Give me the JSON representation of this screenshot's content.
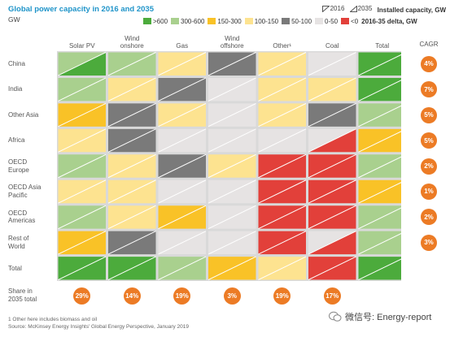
{
  "header": {
    "title": "Global power capacity in 2016 and 2035",
    "unit": "GW",
    "year_2016": "2016",
    "year_2035": "2035",
    "installed_label": "Installed capacity, GW",
    "delta_label": "2016-35 delta, GW"
  },
  "legend": [
    {
      "label": ">600",
      "color": "#4cab3c"
    },
    {
      "label": "300-600",
      "color": "#a9d08e"
    },
    {
      "label": "150-300",
      "color": "#f9c227"
    },
    {
      "label": "100-150",
      "color": "#fde390"
    },
    {
      "label": "50-100",
      "color": "#7a7a7a"
    },
    {
      "label": "0-50",
      "color": "#e6e3e3"
    },
    {
      "label": "<0",
      "color": "#e2403a"
    }
  ],
  "chart_data": {
    "type": "heatmap",
    "title": "Global power capacity in 2016 and 2035",
    "unit": "GW",
    "columns": [
      "Solar PV",
      "Wind onshore",
      "Gas",
      "Wind offshore",
      "Other¹",
      "Coal",
      "Total"
    ],
    "rows": [
      "China",
      "India",
      "Other Asia",
      "Africa",
      "OECD Europe",
      "OECD Asia Pacific",
      "OECD Americas",
      "Rest of World",
      "Total"
    ],
    "row_labels": [
      [
        "China"
      ],
      [
        "India"
      ],
      [
        "Other Asia"
      ],
      [
        "Africa"
      ],
      [
        "OECD",
        "Europe"
      ],
      [
        "OECD Asia",
        "Pacific"
      ],
      [
        "OECD",
        "Americas"
      ],
      [
        "Rest of",
        "World"
      ],
      [
        "Total"
      ]
    ],
    "column_labels": [
      [
        "Solar PV"
      ],
      [
        "Wind",
        "onshore"
      ],
      [
        "Gas"
      ],
      [
        "Wind",
        "offshore"
      ],
      [
        "Other¹"
      ],
      [
        "Coal"
      ],
      [
        "Total"
      ]
    ],
    "cells_2016": [
      [
        "300-600",
        "300-600",
        "100-150",
        "50-100",
        "100-150",
        "0-50",
        ">600"
      ],
      [
        "300-600",
        "100-150",
        "50-100",
        "0-50",
        "100-150",
        "100-150",
        ">600"
      ],
      [
        "150-300",
        "50-100",
        "100-150",
        "0-50",
        "100-150",
        "50-100",
        "300-600"
      ],
      [
        "100-150",
        "50-100",
        "0-50",
        "0-50",
        "0-50",
        "0-50",
        "150-300"
      ],
      [
        "300-600",
        "100-150",
        "50-100",
        "100-150",
        "<0",
        "<0",
        "300-600"
      ],
      [
        "100-150",
        "100-150",
        "0-50",
        "0-50",
        "<0",
        "<0",
        "150-300"
      ],
      [
        "300-600",
        "100-150",
        "150-300",
        "0-50",
        "<0",
        "<0",
        "300-600"
      ],
      [
        "150-300",
        "50-100",
        "0-50",
        "0-50",
        "<0",
        "0-50",
        "300-600"
      ],
      [
        ">600",
        ">600",
        "300-600",
        "150-300",
        "100-150",
        "<0",
        ">600"
      ]
    ],
    "cells_2035": [
      [
        ">600",
        "300-600",
        "100-150",
        "50-100",
        "100-150",
        "0-50",
        ">600"
      ],
      [
        "300-600",
        "100-150",
        "50-100",
        "0-50",
        "100-150",
        "100-150",
        ">600"
      ],
      [
        "150-300",
        "50-100",
        "100-150",
        "0-50",
        "100-150",
        "50-100",
        "300-600"
      ],
      [
        "100-150",
        "50-100",
        "0-50",
        "0-50",
        "0-50",
        "<0",
        "150-300"
      ],
      [
        "300-600",
        "100-150",
        "50-100",
        "100-150",
        "<0",
        "<0",
        "300-600"
      ],
      [
        "100-150",
        "100-150",
        "0-50",
        "0-50",
        "<0",
        "<0",
        "150-300"
      ],
      [
        "300-600",
        "100-150",
        "150-300",
        "0-50",
        "<0",
        "<0",
        "300-600"
      ],
      [
        "150-300",
        "50-100",
        "0-50",
        "0-50",
        "<0",
        "<0",
        "300-600"
      ],
      [
        ">600",
        ">600",
        "300-600",
        "150-300",
        "100-150",
        "<0",
        ">600"
      ]
    ],
    "cagr_header": "CAGR",
    "cagr": [
      "4%",
      "7%",
      "5%",
      "5%",
      "2%",
      "1%",
      "2%",
      "3%"
    ],
    "share_label": [
      "Share in",
      "2035 total"
    ],
    "share": [
      "29%",
      "14%",
      "19%",
      "3%",
      "19%",
      "17%"
    ]
  },
  "footnotes": [
    "1 Other here includes biomass and oil",
    "Source: McKinsey Energy Insights' Global Energy Perspective, January 2019"
  ],
  "watermark": "微信号: Energy-report"
}
